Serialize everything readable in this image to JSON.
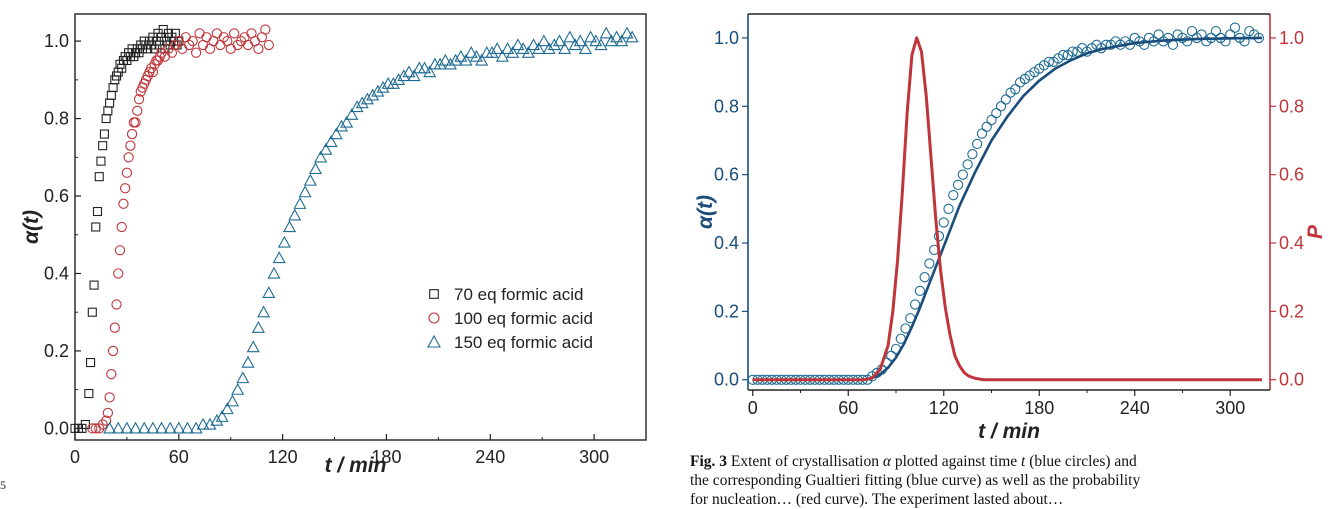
{
  "page": {
    "left_fragment": "5"
  },
  "caption": {
    "fig_label": "Fig. 3",
    "line1_a": " Extent of crystallisation ",
    "alpha": "α",
    "line1_b": " plotted against time ",
    "t": "t",
    "line1_c": " (blue circles) and",
    "line2": "the corresponding Gualtieri fitting (blue curve) as well as the probability",
    "line3": "for nucleation… (red curve). The experiment lasted about… "
  },
  "colors": {
    "black": "#222222",
    "red": "#c0353a",
    "blue": "#1f6b93",
    "navy": "#1a4d7c"
  },
  "chart_data": [
    {
      "type": "scatter",
      "xlabel": "t / min",
      "ylabel": "α(t)",
      "xlim": [
        0,
        330
      ],
      "ylim": [
        -0.03,
        1.07
      ],
      "xticks": [
        "0",
        "60",
        "120",
        "180",
        "240",
        "300"
      ],
      "yticks": [
        "0.0",
        "0.2",
        "0.4",
        "0.6",
        "0.8",
        "1.0"
      ],
      "legend_position": "center-right",
      "series": [
        {
          "name": "70 eq formic acid",
          "marker": "square",
          "x": [
            0,
            2,
            4,
            6,
            8,
            9,
            10,
            11,
            12,
            13,
            14,
            15,
            16,
            17,
            18,
            19,
            20,
            21,
            22,
            23,
            24,
            25,
            26,
            27,
            28,
            29,
            30,
            31,
            32,
            33,
            34,
            35,
            36,
            37,
            38,
            39,
            40,
            41,
            42,
            43,
            44,
            45,
            46,
            47,
            48,
            49,
            50,
            51,
            52,
            53,
            54,
            55,
            56,
            57,
            58,
            59,
            60
          ],
          "y": [
            0.0,
            0.0,
            0.0,
            0.01,
            0.09,
            0.17,
            0.3,
            0.37,
            0.52,
            0.56,
            0.65,
            0.69,
            0.73,
            0.76,
            0.8,
            0.82,
            0.84,
            0.86,
            0.88,
            0.9,
            0.91,
            0.92,
            0.94,
            0.93,
            0.95,
            0.96,
            0.95,
            0.97,
            0.96,
            0.98,
            0.96,
            0.97,
            0.98,
            0.97,
            0.99,
            0.98,
            1.0,
            0.99,
            0.98,
            1.0,
            0.99,
            1.01,
            0.98,
            1.0,
            1.02,
            0.99,
            1.01,
            1.03,
            0.98,
            1.0,
            1.02,
            0.99,
            1.01,
            1.0,
            1.02,
            0.99,
            1.0
          ]
        },
        {
          "name": "100 eq formic acid",
          "marker": "circle",
          "x": [
            10,
            12,
            14,
            16,
            18,
            19,
            20,
            21,
            22,
            23,
            24,
            25,
            26,
            27,
            28,
            29,
            30,
            31,
            32,
            33,
            34,
            35,
            36,
            37,
            38,
            39,
            40,
            41,
            42,
            43,
            44,
            45,
            46,
            47,
            48,
            49,
            50,
            52,
            54,
            56,
            58,
            60,
            62,
            64,
            66,
            68,
            70,
            72,
            74,
            76,
            78,
            80,
            82,
            84,
            86,
            88,
            90,
            92,
            94,
            96,
            98,
            100,
            102,
            104,
            106,
            108,
            110,
            112
          ],
          "y": [
            0.0,
            0.0,
            0.0,
            0.01,
            0.02,
            0.04,
            0.08,
            0.14,
            0.2,
            0.26,
            0.32,
            0.4,
            0.46,
            0.52,
            0.58,
            0.62,
            0.66,
            0.7,
            0.73,
            0.76,
            0.79,
            0.79,
            0.82,
            0.85,
            0.87,
            0.88,
            0.89,
            0.9,
            0.91,
            0.92,
            0.93,
            0.92,
            0.94,
            0.95,
            0.95,
            0.96,
            0.97,
            0.96,
            0.98,
            0.97,
            0.99,
            1.0,
            0.98,
            1.01,
            0.99,
            1.0,
            0.97,
            1.02,
            0.99,
            1.01,
            0.98,
            1.0,
            1.02,
            0.99,
            1.01,
            1.0,
            0.98,
            1.02,
            0.99,
            1.0,
            1.01,
            0.99,
            1.02,
            1.0,
            0.98,
            1.01,
            1.03,
            0.99
          ]
        },
        {
          "name": "150 eq formic acid",
          "marker": "triangle",
          "x": [
            20,
            25,
            30,
            35,
            40,
            45,
            50,
            55,
            60,
            65,
            70,
            74,
            78,
            82,
            85,
            88,
            91,
            94,
            97,
            100,
            103,
            106,
            109,
            112,
            115,
            118,
            121,
            124,
            127,
            130,
            133,
            136,
            139,
            142,
            145,
            148,
            151,
            154,
            157,
            160,
            163,
            166,
            169,
            172,
            175,
            178,
            181,
            184,
            187,
            190,
            193,
            196,
            199,
            202,
            205,
            208,
            211,
            214,
            217,
            220,
            223,
            226,
            229,
            232,
            235,
            238,
            241,
            244,
            247,
            250,
            253,
            256,
            259,
            262,
            265,
            268,
            271,
            274,
            277,
            280,
            283,
            286,
            289,
            292,
            295,
            298,
            301,
            304,
            307,
            310,
            313,
            316,
            319,
            322
          ],
          "y": [
            0.0,
            0.0,
            0.0,
            0.0,
            0.0,
            0.0,
            0.0,
            0.0,
            0.0,
            0.0,
            0.0,
            0.01,
            0.01,
            0.02,
            0.03,
            0.05,
            0.07,
            0.1,
            0.13,
            0.17,
            0.21,
            0.26,
            0.3,
            0.35,
            0.4,
            0.44,
            0.48,
            0.52,
            0.55,
            0.58,
            0.61,
            0.64,
            0.67,
            0.7,
            0.72,
            0.74,
            0.76,
            0.78,
            0.79,
            0.81,
            0.83,
            0.84,
            0.85,
            0.86,
            0.87,
            0.88,
            0.89,
            0.89,
            0.9,
            0.91,
            0.92,
            0.91,
            0.93,
            0.93,
            0.92,
            0.94,
            0.94,
            0.95,
            0.94,
            0.95,
            0.96,
            0.95,
            0.97,
            0.96,
            0.95,
            0.97,
            0.97,
            0.98,
            0.96,
            0.98,
            0.97,
            0.99,
            0.98,
            0.97,
            0.99,
            0.98,
            1.0,
            0.98,
            0.99,
            1.0,
            0.98,
            1.01,
            0.99,
            1.0,
            0.98,
            1.01,
            1.0,
            0.99,
            1.02,
            1.0,
            1.01,
            1.0,
            1.02,
            1.01
          ]
        }
      ]
    },
    {
      "type": "scatter",
      "xlabel": "t / min",
      "ylabel": "α(t)",
      "y2label": "P",
      "xlim": [
        -3,
        325
      ],
      "ylim": [
        -0.03,
        1.07
      ],
      "y2lim": [
        -0.03,
        1.07
      ],
      "xticks": [
        "0",
        "60",
        "120",
        "180",
        "240",
        "300"
      ],
      "yticks": [
        "0.0",
        "0.2",
        "0.4",
        "0.6",
        "0.8",
        "1.0"
      ],
      "y2ticks": [
        "0.0",
        "0.2",
        "0.4",
        "0.6",
        "0.8",
        "1.0"
      ],
      "series": [
        {
          "name": "",
          "marker": "circle",
          "x": [
            0,
            3,
            6,
            9,
            12,
            15,
            18,
            21,
            24,
            27,
            30,
            33,
            36,
            39,
            42,
            45,
            48,
            51,
            54,
            57,
            60,
            63,
            66,
            69,
            72,
            75,
            78,
            81,
            84,
            87,
            90,
            93,
            96,
            99,
            102,
            105,
            108,
            111,
            114,
            117,
            120,
            123,
            126,
            129,
            132,
            135,
            138,
            141,
            144,
            147,
            150,
            153,
            156,
            159,
            162,
            165,
            168,
            171,
            174,
            177,
            180,
            183,
            186,
            189,
            192,
            195,
            198,
            201,
            204,
            207,
            210,
            213,
            216,
            219,
            222,
            225,
            228,
            231,
            234,
            237,
            240,
            243,
            246,
            249,
            252,
            255,
            258,
            261,
            264,
            267,
            270,
            273,
            276,
            279,
            282,
            285,
            288,
            291,
            294,
            297,
            300,
            303,
            306,
            309,
            312,
            315,
            318
          ],
          "y": [
            0.0,
            0.0,
            0.0,
            0.0,
            0.0,
            0.0,
            0.0,
            0.0,
            0.0,
            0.0,
            0.0,
            0.0,
            0.0,
            0.0,
            0.0,
            0.0,
            0.0,
            0.0,
            0.0,
            0.0,
            0.0,
            0.0,
            0.0,
            0.0,
            0.0,
            0.01,
            0.02,
            0.03,
            0.05,
            0.07,
            0.09,
            0.12,
            0.15,
            0.18,
            0.22,
            0.26,
            0.3,
            0.34,
            0.38,
            0.42,
            0.46,
            0.5,
            0.54,
            0.57,
            0.6,
            0.63,
            0.66,
            0.69,
            0.72,
            0.74,
            0.76,
            0.78,
            0.8,
            0.82,
            0.84,
            0.85,
            0.87,
            0.88,
            0.89,
            0.9,
            0.91,
            0.92,
            0.93,
            0.93,
            0.94,
            0.95,
            0.95,
            0.96,
            0.96,
            0.97,
            0.96,
            0.97,
            0.98,
            0.97,
            0.98,
            0.98,
            0.99,
            0.98,
            0.99,
            0.98,
            1.0,
            0.99,
            0.98,
            1.0,
            0.99,
            1.01,
            0.99,
            1.0,
            0.98,
            1.01,
            1.0,
            0.99,
            1.02,
            1.0,
            1.01,
            0.99,
            1.0,
            1.02,
            1.0,
            0.99,
            1.01,
            1.03,
            1.0,
            0.99,
            1.02,
            1.01,
            1.0
          ]
        },
        {
          "name": "",
          "type": "line",
          "axis": "left",
          "x": [
            0,
            10,
            20,
            30,
            40,
            50,
            60,
            70,
            75,
            80,
            85,
            90,
            95,
            100,
            105,
            110,
            115,
            120,
            125,
            130,
            135,
            140,
            145,
            150,
            155,
            160,
            170,
            180,
            190,
            200,
            210,
            220,
            240,
            260,
            280,
            300,
            320
          ],
          "y": [
            0.0,
            0.0,
            0.0,
            0.0,
            0.0,
            0.0,
            0.0,
            0.0,
            0.005,
            0.015,
            0.035,
            0.065,
            0.105,
            0.155,
            0.21,
            0.27,
            0.33,
            0.39,
            0.45,
            0.51,
            0.56,
            0.61,
            0.655,
            0.7,
            0.735,
            0.77,
            0.83,
            0.875,
            0.91,
            0.935,
            0.955,
            0.968,
            0.985,
            0.993,
            0.997,
            0.999,
            1.0
          ]
        },
        {
          "name": "",
          "type": "line",
          "axis": "right",
          "x": [
            0,
            20,
            40,
            60,
            70,
            75,
            80,
            85,
            88,
            91,
            94,
            97,
            100,
            103,
            106,
            109,
            112,
            115,
            118,
            121,
            124,
            127,
            130,
            133,
            136,
            140,
            145,
            150,
            160,
            180,
            200,
            240,
            280,
            320
          ],
          "y": [
            0.0,
            0.0,
            0.0,
            0.0,
            0.0,
            0.005,
            0.03,
            0.1,
            0.2,
            0.35,
            0.55,
            0.78,
            0.95,
            1.0,
            0.96,
            0.83,
            0.65,
            0.47,
            0.32,
            0.21,
            0.13,
            0.07,
            0.04,
            0.02,
            0.01,
            0.004,
            0.0,
            0.0,
            0.0,
            0.0,
            0.0,
            0.0,
            0.0,
            0.0
          ]
        }
      ]
    }
  ]
}
